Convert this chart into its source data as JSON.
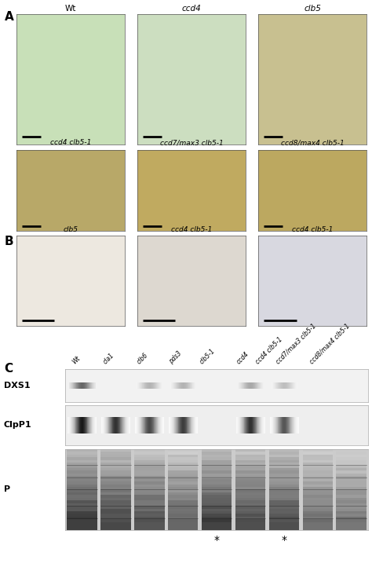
{
  "panel_A_top_labels": [
    "Wt",
    "ccd4",
    "clb5"
  ],
  "panel_A_top_italic": [
    false,
    true,
    true
  ],
  "panel_A_bot_labels": [
    "ccd4 clb5-1",
    "ccd7/max3 clb5-1",
    "ccd8/max4 clb5-1"
  ],
  "panel_B_labels": [
    "clb5",
    "ccd4 clb5-1",
    "ccd4 clb5-1"
  ],
  "panel_C_lane_labels": [
    "Wt",
    "cla1",
    "clb6",
    "pds3",
    "clb5-1",
    "ccd4",
    "ccd4 clb5-1",
    "ccd7/max3 clb5-1",
    "ccd8/max4 clb5-1"
  ],
  "panel_C_row_labels": [
    "DXS1",
    "ClpP1",
    "P"
  ],
  "panel_C_stars": [
    4,
    6
  ],
  "top_bg_colors": [
    "#c8e0b8",
    "#ccdec0",
    "#c8c090"
  ],
  "bot_bg_colors": [
    "#b8a868",
    "#c0aa60",
    "#bca860"
  ],
  "panel_B_bg_colors": [
    "#ede8e0",
    "#ddd8d0",
    "#d8d8e0"
  ],
  "dxs1_band_lanes": [
    0,
    2,
    3,
    5,
    6
  ],
  "dxs1_band_intensity": [
    0.7,
    0.35,
    0.35,
    0.4,
    0.3
  ],
  "clpp1_band_lanes": [
    0,
    1,
    2,
    3,
    5,
    6
  ],
  "clpp1_band_intensity": [
    0.95,
    0.85,
    0.75,
    0.8,
    0.85,
    0.7
  ]
}
